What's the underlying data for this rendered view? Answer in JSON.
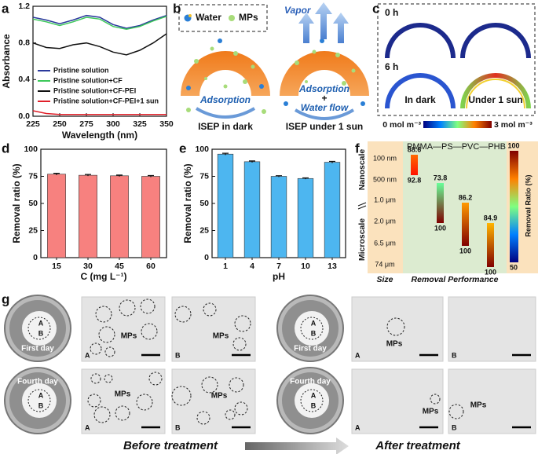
{
  "panel_labels": [
    "a",
    "b",
    "c",
    "d",
    "e",
    "f",
    "g"
  ],
  "chart_data": [
    {
      "type": "line",
      "xlabel": "Wavelength (nm)",
      "ylabel": "Absorbance",
      "x": [
        225,
        237.5,
        250,
        262.5,
        275,
        287.5,
        300,
        312.5,
        325,
        337.5,
        350
      ],
      "xlim": [
        225,
        350
      ],
      "xticks": [
        225,
        250,
        275,
        300,
        325,
        350
      ],
      "ylim": [
        0,
        1.2
      ],
      "yticks": [
        {
          "value": 0,
          "label": "0.0"
        },
        0.4,
        0.8,
        1.2
      ],
      "legend": "lower left",
      "series": [
        {
          "name": "Pristine solution",
          "color": "#2b3a9c",
          "values": [
            1.08,
            1.05,
            1.01,
            1.05,
            1.1,
            1.08,
            1.0,
            0.96,
            0.99,
            1.05,
            1.1
          ]
        },
        {
          "name": "Pristine solution+CF",
          "color": "#3cc85a",
          "values": [
            1.06,
            1.03,
            0.99,
            1.03,
            1.08,
            1.06,
            0.98,
            0.95,
            0.98,
            1.04,
            1.09
          ]
        },
        {
          "name": "Pristine solution+CF-PEI",
          "color": "#111111",
          "values": [
            0.8,
            0.75,
            0.74,
            0.78,
            0.8,
            0.76,
            0.7,
            0.67,
            0.72,
            0.8,
            0.9
          ]
        },
        {
          "name": "Pristine solution+CF-PEI+1 sun",
          "color": "#e0202a",
          "values": [
            0.06,
            0.03,
            0.02,
            0.02,
            0.02,
            0.02,
            0.02,
            0.02,
            0.02,
            0.02,
            0.02
          ]
        }
      ]
    },
    {
      "type": "bar",
      "xlabel": "C (mg L⁻¹)",
      "ylabel": "Removal ratio (%)",
      "categories": [
        "15",
        "30",
        "45",
        "60"
      ],
      "values": [
        77,
        76,
        75.5,
        75
      ],
      "errors": [
        0.8,
        0.7,
        0.7,
        0.7
      ],
      "color": "#f7817f",
      "ylim": [
        0,
        100
      ],
      "yticks": [
        0,
        25,
        50,
        75,
        100
      ]
    },
    {
      "type": "bar",
      "xlabel": "pH",
      "ylabel": "Removal ratio (%)",
      "categories": [
        "1",
        "4",
        "7",
        "10",
        "13"
      ],
      "values": [
        95.5,
        88.5,
        75,
        73,
        88
      ],
      "errors": [
        0.8,
        0.7,
        0.6,
        0.6,
        0.8
      ],
      "color": "#4db6f0",
      "ylim": [
        0,
        100
      ],
      "yticks": [
        0,
        25,
        50,
        75,
        100
      ]
    }
  ],
  "panel_b": {
    "legend": [
      "Water",
      "MPs"
    ],
    "vapor": "Vapor",
    "left_flow": "Adsorption",
    "right_flow": [
      "Adsorption",
      "+",
      "Water flow"
    ],
    "captions": [
      "ISEP in dark",
      "ISEP under 1 sun"
    ]
  },
  "panel_c": {
    "rows": [
      "0 h",
      "6 h"
    ],
    "captions": [
      "In dark",
      "Under 1 sun"
    ],
    "scale": [
      "0 mol m⁻³",
      "3 mol m⁻³"
    ]
  },
  "panel_f": {
    "header": "PMMA—PS—PVC—PHB",
    "scales": [
      "Nanoscale",
      "Microscale"
    ],
    "sizes": [
      "100 nm",
      "500 nm",
      "1.0 μm",
      "2.0 μm",
      "6.5 μm",
      "74 μm"
    ],
    "materials": [
      {
        "values": [
          88.6,
          92.8
        ]
      },
      {
        "values": [
          73.8,
          100
        ]
      },
      {
        "values": [
          86.2,
          100
        ]
      },
      {
        "values": [
          84.9,
          100
        ]
      }
    ],
    "colorbar": {
      "label": "Removal Ratio (%)",
      "range": [
        100,
        50
      ]
    },
    "footer": [
      "Size",
      "Removal Performance"
    ]
  },
  "panel_g": {
    "dishes": [
      {
        "day": "First day",
        "a": "A",
        "b": "B"
      },
      {
        "day": "Fourth day",
        "a": "A",
        "b": "B"
      },
      {
        "day": "First day",
        "a": "A",
        "b": "B"
      },
      {
        "day": "Fourth day",
        "a": "A",
        "b": "B"
      }
    ],
    "images": [
      {
        "letter": "A",
        "label": "MPs"
      },
      {
        "letter": "B",
        "label": "MPs"
      },
      {
        "letter": "A",
        "label": "MPs"
      },
      {
        "letter": "B",
        "label": "MPs"
      },
      {
        "letter": "A",
        "label": "MPs"
      },
      {
        "letter": "B"
      },
      {
        "letter": "A",
        "label": "MPs"
      },
      {
        "letter": "B",
        "label": "MPs"
      }
    ],
    "before": "Before treatment",
    "after": "After treatment"
  }
}
